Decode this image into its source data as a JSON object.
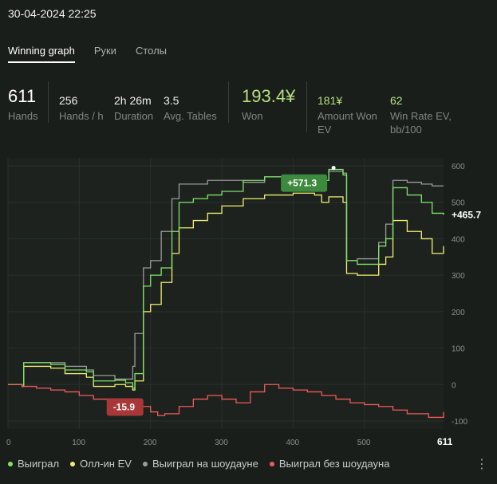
{
  "header": {
    "datetime": "30-04-2024 22:25"
  },
  "tabs": [
    {
      "label": "Winning graph",
      "active": true
    },
    {
      "label": "Руки",
      "active": false
    },
    {
      "label": "Столы",
      "active": false
    }
  ],
  "stats": {
    "hands": {
      "value": "611",
      "label": "Hands"
    },
    "hands_per_h": {
      "value": "256",
      "label": "Hands / h"
    },
    "duration": {
      "value": "2h 26m",
      "label": "Duration"
    },
    "avg_tables": {
      "value": "3.5",
      "label": "Avg. Tables"
    },
    "won": {
      "value": "193.4¥",
      "label": "Won"
    },
    "amount_won_ev": {
      "value": "181¥",
      "label_line1": "Amount Won",
      "label_line2": "EV"
    },
    "win_rate_ev": {
      "value": "62",
      "label_line1": "Win Rate EV,",
      "label_line2": "bb/100"
    }
  },
  "colors": {
    "green": "#7ee46a",
    "yellow": "#f3ee72",
    "gray": "#9a9d9b",
    "red": "#f25a5a",
    "badge_green": "#3d8a3f",
    "badge_red": "#a83838"
  },
  "chart_data": {
    "type": "line",
    "xlim": [
      0,
      611
    ],
    "ylim": [
      -100,
      600
    ],
    "x_ticks": [
      "0",
      "100",
      "200",
      "300",
      "400",
      "500",
      "611"
    ],
    "y_ticks": [
      "600",
      "500",
      "400",
      "300",
      "200",
      "100",
      "0",
      "-100"
    ],
    "current_value_label": "+465.7",
    "max_badge": {
      "label": "+571.3",
      "x": 450,
      "y": 590
    },
    "min_badge": {
      "label": "-15.9",
      "x": 172,
      "y": -15.9
    },
    "series": [
      {
        "name": "Выиграл",
        "color_key": "green",
        "points": [
          [
            0,
            0
          ],
          [
            20,
            -5
          ],
          [
            22,
            60
          ],
          [
            60,
            55
          ],
          [
            80,
            40
          ],
          [
            110,
            35
          ],
          [
            120,
            10
          ],
          [
            150,
            12
          ],
          [
            165,
            5
          ],
          [
            175,
            -10
          ],
          [
            178,
            30
          ],
          [
            190,
            270
          ],
          [
            200,
            300
          ],
          [
            215,
            320
          ],
          [
            230,
            420
          ],
          [
            240,
            500
          ],
          [
            260,
            510
          ],
          [
            280,
            520
          ],
          [
            300,
            530
          ],
          [
            330,
            560
          ],
          [
            360,
            570
          ],
          [
            400,
            565
          ],
          [
            430,
            570
          ],
          [
            440,
            560
          ],
          [
            450,
            590
          ],
          [
            470,
            575
          ],
          [
            475,
            340
          ],
          [
            490,
            330
          ],
          [
            520,
            380
          ],
          [
            530,
            400
          ],
          [
            540,
            540
          ],
          [
            560,
            520
          ],
          [
            580,
            500
          ],
          [
            595,
            470
          ],
          [
            611,
            465.7
          ]
        ]
      },
      {
        "name": "Олл-ин EV",
        "color_key": "yellow",
        "points": [
          [
            0,
            0
          ],
          [
            20,
            -5
          ],
          [
            22,
            50
          ],
          [
            60,
            45
          ],
          [
            80,
            30
          ],
          [
            110,
            20
          ],
          [
            120,
            -5
          ],
          [
            150,
            0
          ],
          [
            165,
            -5
          ],
          [
            175,
            -15
          ],
          [
            178,
            10
          ],
          [
            190,
            200
          ],
          [
            200,
            220
          ],
          [
            215,
            280
          ],
          [
            230,
            360
          ],
          [
            240,
            430
          ],
          [
            260,
            450
          ],
          [
            280,
            470
          ],
          [
            300,
            490
          ],
          [
            330,
            510
          ],
          [
            360,
            520
          ],
          [
            400,
            525
          ],
          [
            430,
            520
          ],
          [
            440,
            500
          ],
          [
            450,
            515
          ],
          [
            470,
            500
          ],
          [
            475,
            305
          ],
          [
            490,
            300
          ],
          [
            520,
            330
          ],
          [
            530,
            350
          ],
          [
            540,
            450
          ],
          [
            560,
            420
          ],
          [
            580,
            400
          ],
          [
            595,
            360
          ],
          [
            611,
            380
          ]
        ]
      },
      {
        "name": "Выиграл на шоудауне",
        "color_key": "gray",
        "points": [
          [
            0,
            0
          ],
          [
            20,
            -5
          ],
          [
            22,
            60
          ],
          [
            60,
            60
          ],
          [
            80,
            50
          ],
          [
            110,
            40
          ],
          [
            120,
            25
          ],
          [
            150,
            15
          ],
          [
            165,
            15
          ],
          [
            175,
            50
          ],
          [
            178,
            140
          ],
          [
            190,
            320
          ],
          [
            200,
            340
          ],
          [
            215,
            420
          ],
          [
            230,
            510
          ],
          [
            240,
            550
          ],
          [
            260,
            550
          ],
          [
            280,
            560
          ],
          [
            300,
            560
          ],
          [
            330,
            555
          ],
          [
            360,
            570
          ],
          [
            400,
            565
          ],
          [
            430,
            570
          ],
          [
            440,
            560
          ],
          [
            450,
            585
          ],
          [
            470,
            580
          ],
          [
            475,
            340
          ],
          [
            490,
            345
          ],
          [
            520,
            390
          ],
          [
            530,
            440
          ],
          [
            540,
            560
          ],
          [
            560,
            555
          ],
          [
            580,
            550
          ],
          [
            595,
            545
          ],
          [
            611,
            545
          ]
        ]
      },
      {
        "name": "Выиграл без шоудауна",
        "color_key": "red",
        "points": [
          [
            0,
            0
          ],
          [
            20,
            -5
          ],
          [
            40,
            -10
          ],
          [
            60,
            -15
          ],
          [
            80,
            -20
          ],
          [
            100,
            -30
          ],
          [
            120,
            -40
          ],
          [
            140,
            -45
          ],
          [
            160,
            -50
          ],
          [
            180,
            -60
          ],
          [
            200,
            -75
          ],
          [
            210,
            -85
          ],
          [
            220,
            -80
          ],
          [
            240,
            -60
          ],
          [
            260,
            -40
          ],
          [
            280,
            -30
          ],
          [
            300,
            -40
          ],
          [
            320,
            -50
          ],
          [
            340,
            -20
          ],
          [
            360,
            0
          ],
          [
            380,
            -10
          ],
          [
            400,
            -15
          ],
          [
            420,
            -20
          ],
          [
            440,
            -30
          ],
          [
            460,
            -40
          ],
          [
            480,
            -50
          ],
          [
            500,
            -55
          ],
          [
            520,
            -60
          ],
          [
            540,
            -70
          ],
          [
            560,
            -80
          ],
          [
            590,
            -90
          ],
          [
            611,
            -75
          ]
        ]
      }
    ]
  },
  "legend": [
    {
      "label": "Выиграл",
      "color_key": "green"
    },
    {
      "label": "Олл-ин EV",
      "color_key": "yellow"
    },
    {
      "label": "Выиграл на шоудауне",
      "color_key": "gray"
    },
    {
      "label": "Выиграл без шоудауна",
      "color_key": "red"
    }
  ],
  "menu_icon": "kebab-menu-icon"
}
